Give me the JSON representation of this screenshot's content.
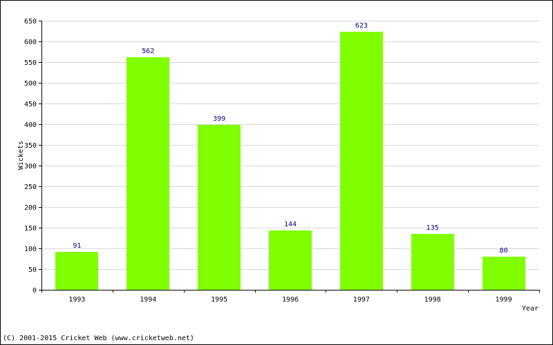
{
  "chart_data": {
    "type": "bar",
    "categories": [
      "1993",
      "1994",
      "1995",
      "1996",
      "1997",
      "1998",
      "1999"
    ],
    "series": [
      {
        "values": [
          91,
          562,
          399,
          144,
          623,
          135,
          80
        ],
        "color": "#80ff00"
      }
    ],
    "xlabel": "Year",
    "ylabel": "Wickets",
    "ylim": [
      0,
      650
    ],
    "yticks": [
      0,
      50,
      100,
      150,
      200,
      250,
      300,
      350,
      400,
      450,
      500,
      550,
      600,
      650
    ],
    "grid": true,
    "legend": "none"
  },
  "footer": {
    "copyright": "(C) 2001-2015 Cricket Web (www.cricketweb.net)"
  },
  "colors": {
    "bar": "#80ff00",
    "value_label": "#000080",
    "grid": "#d8d8d8",
    "axis": "#000000"
  }
}
